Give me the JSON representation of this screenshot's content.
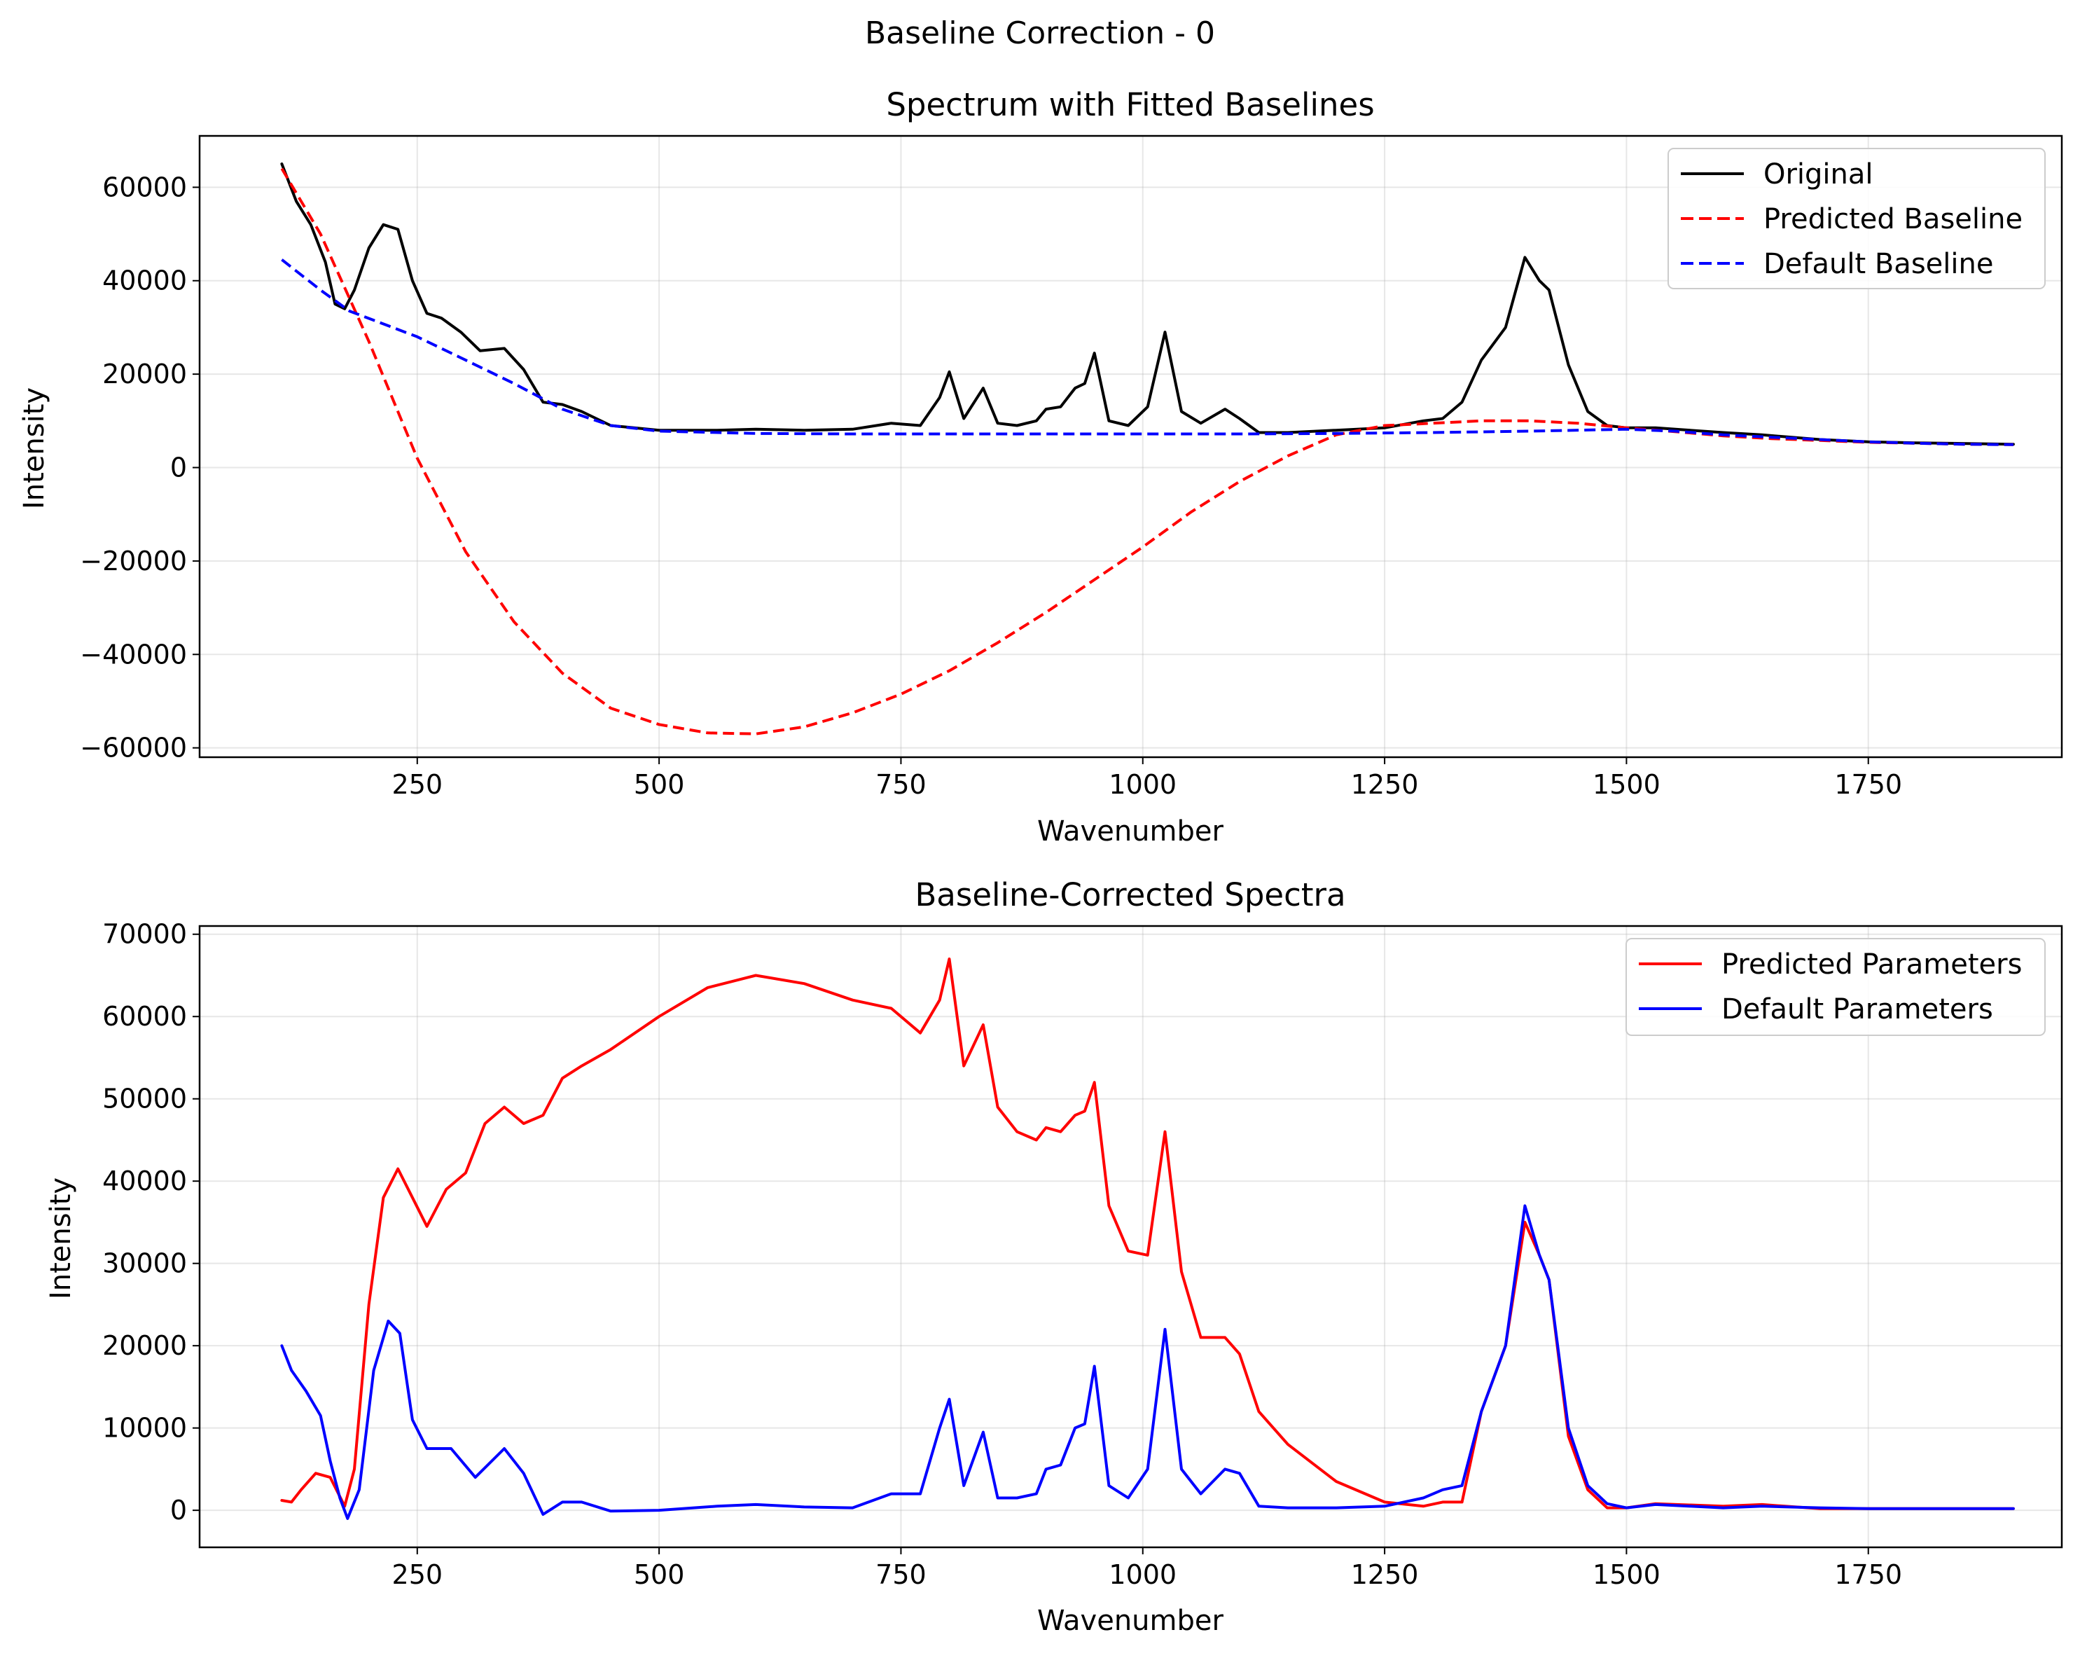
{
  "figure": {
    "suptitle": "Baseline Correction - 0"
  },
  "chart_data": [
    {
      "type": "line",
      "title": "Spectrum with Fitted Baselines",
      "xlabel": "Wavenumber",
      "ylabel": "Intensity",
      "xlim": [
        25,
        1950
      ],
      "ylim": [
        -62000,
        71000
      ],
      "xticks": [
        250,
        500,
        750,
        1000,
        1250,
        1500,
        1750
      ],
      "yticks": [
        60000,
        40000,
        20000,
        0,
        -20000,
        -40000,
        -60000
      ],
      "xtick_labels": [
        "250",
        "500",
        "750",
        "1000",
        "1250",
        "1500",
        "1750"
      ],
      "ytick_labels": [
        "60000",
        "40000",
        "20000",
        "0",
        "−20000",
        "−40000",
        "−60000"
      ],
      "grid": true,
      "legend_position": "top-right",
      "series": [
        {
          "name": "Original",
          "color": "#000000",
          "style": "solid",
          "x": [
            110,
            125,
            140,
            155,
            165,
            175,
            185,
            200,
            215,
            230,
            245,
            260,
            275,
            295,
            315,
            340,
            360,
            380,
            400,
            420,
            450,
            500,
            560,
            600,
            650,
            700,
            740,
            770,
            790,
            800,
            815,
            835,
            850,
            870,
            890,
            900,
            915,
            930,
            940,
            950,
            965,
            985,
            1005,
            1023,
            1040,
            1060,
            1085,
            1100,
            1120,
            1150,
            1200,
            1250,
            1290,
            1310,
            1330,
            1350,
            1375,
            1395,
            1410,
            1420,
            1440,
            1460,
            1480,
            1500,
            1530,
            1600,
            1640,
            1700,
            1750,
            1800,
            1900
          ],
          "y": [
            65000,
            57000,
            52000,
            44000,
            35000,
            34000,
            38000,
            47000,
            52000,
            51000,
            40000,
            33000,
            32000,
            29000,
            25000,
            25500,
            21000,
            14000,
            13500,
            12000,
            9000,
            8000,
            8000,
            8200,
            8000,
            8200,
            9500,
            9000,
            15000,
            20500,
            10500,
            17000,
            9500,
            9000,
            10000,
            12500,
            13000,
            17000,
            18000,
            24500,
            10000,
            9000,
            13000,
            29000,
            12000,
            9500,
            12500,
            10500,
            7500,
            7500,
            8000,
            8500,
            10000,
            10500,
            14000,
            23000,
            30000,
            45000,
            40000,
            38000,
            22000,
            12000,
            9000,
            8500,
            8500,
            7500,
            7000,
            6000,
            5500,
            5300,
            5000
          ]
        },
        {
          "name": "Predicted Baseline",
          "color": "#ff0000",
          "style": "dashed",
          "x": [
            110,
            150,
            200,
            250,
            300,
            350,
            400,
            450,
            500,
            550,
            600,
            650,
            700,
            750,
            800,
            850,
            900,
            950,
            1000,
            1050,
            1100,
            1150,
            1200,
            1250,
            1300,
            1350,
            1400,
            1450,
            1500,
            1550,
            1600,
            1650,
            1700,
            1750,
            1800,
            1850,
            1900
          ],
          "y": [
            64000,
            50000,
            27000,
            2000,
            -18000,
            -33000,
            -44000,
            -51500,
            -55000,
            -56800,
            -57000,
            -55500,
            -52500,
            -48500,
            -43500,
            -37500,
            -31000,
            -24000,
            -17000,
            -9500,
            -3000,
            2500,
            7000,
            9000,
            9500,
            10000,
            10000,
            9500,
            8500,
            7700,
            6800,
            6200,
            5800,
            5400,
            5200,
            5000,
            4900
          ]
        },
        {
          "name": "Default Baseline",
          "color": "#0000ff",
          "style": "dashed",
          "x": [
            110,
            150,
            180,
            250,
            300,
            350,
            400,
            450,
            500,
            600,
            700,
            800,
            900,
            1000,
            1100,
            1200,
            1300,
            1400,
            1500,
            1550,
            1600,
            1650,
            1700,
            1750,
            1800,
            1850,
            1900
          ],
          "y": [
            44500,
            38000,
            33500,
            28000,
            23000,
            18000,
            12500,
            9000,
            7800,
            7300,
            7200,
            7200,
            7200,
            7200,
            7200,
            7300,
            7500,
            7800,
            8200,
            7800,
            7000,
            6500,
            6000,
            5500,
            5200,
            5000,
            4900
          ]
        }
      ]
    },
    {
      "type": "line",
      "title": "Baseline-Corrected Spectra",
      "xlabel": "Wavenumber",
      "ylabel": "Intensity",
      "xlim": [
        25,
        1950
      ],
      "ylim": [
        -4500,
        71000
      ],
      "xticks": [
        250,
        500,
        750,
        1000,
        1250,
        1500,
        1750
      ],
      "yticks": [
        0,
        10000,
        20000,
        30000,
        40000,
        50000,
        60000,
        70000
      ],
      "xtick_labels": [
        "250",
        "500",
        "750",
        "1000",
        "1250",
        "1500",
        "1750"
      ],
      "ytick_labels": [
        "0",
        "10000",
        "20000",
        "30000",
        "40000",
        "50000",
        "60000",
        "70000"
      ],
      "grid": true,
      "legend_position": "top-right",
      "series": [
        {
          "name": "Predicted Parameters",
          "color": "#ff0000",
          "style": "solid",
          "x": [
            110,
            120,
            130,
            145,
            160,
            175,
            185,
            200,
            215,
            230,
            245,
            260,
            280,
            300,
            320,
            340,
            360,
            380,
            400,
            420,
            450,
            500,
            550,
            600,
            650,
            700,
            740,
            770,
            790,
            800,
            815,
            835,
            850,
            870,
            890,
            900,
            915,
            930,
            940,
            950,
            965,
            985,
            1005,
            1023,
            1040,
            1060,
            1085,
            1100,
            1120,
            1150,
            1200,
            1250,
            1290,
            1310,
            1330,
            1350,
            1375,
            1395,
            1410,
            1420,
            1440,
            1460,
            1480,
            1500,
            1530,
            1600,
            1640,
            1700,
            1750,
            1800,
            1900
          ],
          "y": [
            1200,
            1000,
            2500,
            4500,
            4000,
            500,
            5000,
            25000,
            38000,
            41500,
            38000,
            34500,
            39000,
            41000,
            47000,
            49000,
            47000,
            48000,
            52500,
            54000,
            56000,
            60000,
            63500,
            65000,
            64000,
            62000,
            61000,
            58000,
            62000,
            67000,
            54000,
            59000,
            49000,
            46000,
            45000,
            46500,
            46000,
            48000,
            48500,
            52000,
            37000,
            31500,
            31000,
            46000,
            29000,
            21000,
            21000,
            19000,
            12000,
            8000,
            3500,
            1000,
            500,
            1000,
            1000,
            12000,
            20000,
            35000,
            31000,
            28000,
            9000,
            2500,
            300,
            300,
            800,
            500,
            700,
            200,
            200,
            200,
            200
          ]
        },
        {
          "name": "Default Parameters",
          "color": "#0000ff",
          "style": "solid",
          "x": [
            110,
            120,
            135,
            150,
            160,
            170,
            178,
            190,
            205,
            220,
            232,
            245,
            260,
            285,
            310,
            340,
            360,
            380,
            400,
            420,
            450,
            500,
            560,
            600,
            650,
            700,
            740,
            770,
            790,
            800,
            815,
            835,
            850,
            870,
            890,
            900,
            915,
            930,
            940,
            950,
            965,
            985,
            1005,
            1023,
            1040,
            1060,
            1085,
            1100,
            1120,
            1150,
            1200,
            1250,
            1290,
            1310,
            1330,
            1350,
            1375,
            1395,
            1410,
            1420,
            1440,
            1460,
            1480,
            1500,
            1530,
            1600,
            1640,
            1700,
            1750,
            1800,
            1900
          ],
          "y": [
            20000,
            17000,
            14500,
            11500,
            6000,
            1500,
            -1000,
            2500,
            17000,
            23000,
            21500,
            11000,
            7500,
            7500,
            4000,
            7500,
            4500,
            -500,
            1000,
            1000,
            -100,
            0,
            500,
            700,
            400,
            300,
            2000,
            2000,
            10000,
            13500,
            3000,
            9500,
            1500,
            1500,
            2000,
            5000,
            5500,
            10000,
            10500,
            17500,
            3000,
            1500,
            5000,
            22000,
            5000,
            2000,
            5000,
            4500,
            500,
            300,
            300,
            500,
            1500,
            2500,
            3000,
            12000,
            20000,
            37000,
            31000,
            28000,
            10000,
            3000,
            800,
            300,
            700,
            300,
            500,
            300,
            200,
            200,
            200
          ]
        }
      ]
    }
  ]
}
